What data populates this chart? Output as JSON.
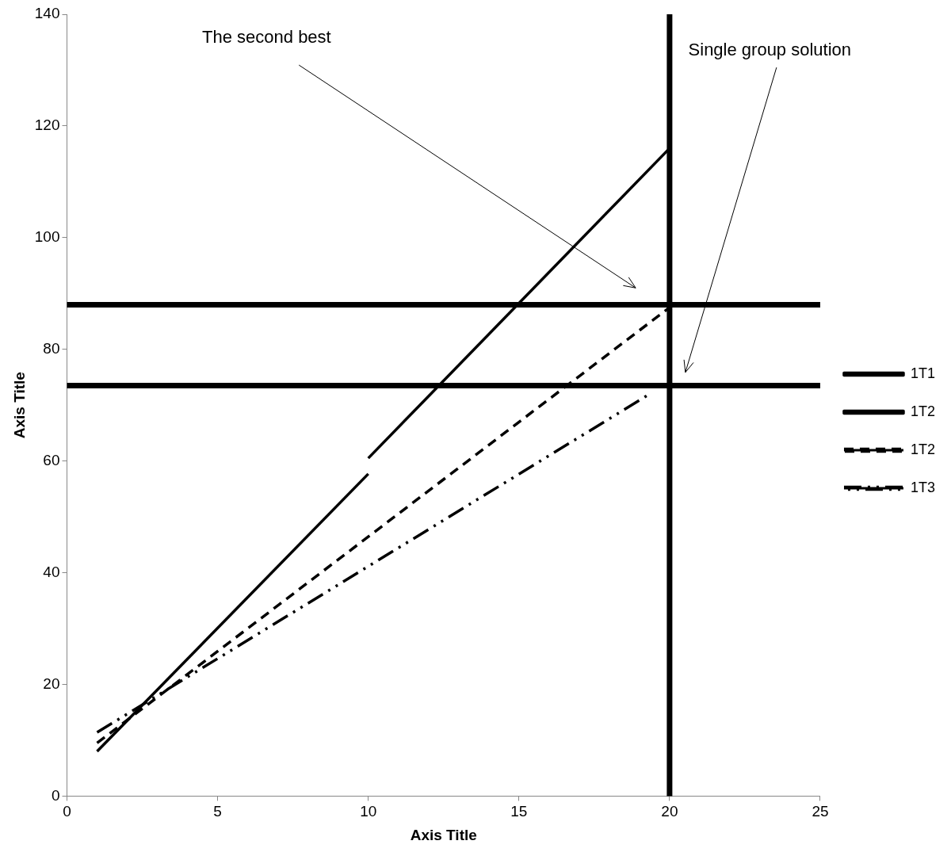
{
  "chart_data": {
    "type": "line",
    "xlabel": "Axis Title",
    "ylabel": "Axis Title",
    "xlim": [
      0,
      25
    ],
    "xticks": [
      0,
      5,
      10,
      15,
      20,
      25
    ],
    "ylim": [
      0,
      140
    ],
    "yticks": [
      0,
      20,
      40,
      60,
      80,
      100,
      120,
      140
    ],
    "grid": false,
    "legend": "right",
    "marker": "none",
    "series": [
      {
        "name": "1T1",
        "color": "#000000",
        "line_style": "solid",
        "x": [
          1,
          10
        ],
        "values": [
          8,
          57.7
        ]
      },
      {
        "name": "1T2",
        "color": "#000000",
        "line_style": "solid",
        "x": [
          10,
          20
        ],
        "values": [
          60.5,
          116
        ]
      },
      {
        "name": "1T2",
        "color": "#000000",
        "line_style": "dashed",
        "x": [
          1,
          20
        ],
        "values": [
          9.5,
          87.5
        ]
      },
      {
        "name": "1T3",
        "color": "#000000",
        "line_style": "dashdotdot",
        "x": [
          1,
          19.4
        ],
        "values": [
          11.4,
          72.2
        ]
      }
    ],
    "ref_lines": [
      {
        "axis": "y",
        "value": 88,
        "color": "#000000",
        "line_style": "solid"
      },
      {
        "axis": "y",
        "value": 73.5,
        "color": "#000000",
        "line_style": "solid"
      },
      {
        "axis": "x",
        "value": 20,
        "color": "#000000",
        "line_style": "solid"
      }
    ],
    "annotations": [
      "The second best",
      "Single group solution"
    ]
  }
}
